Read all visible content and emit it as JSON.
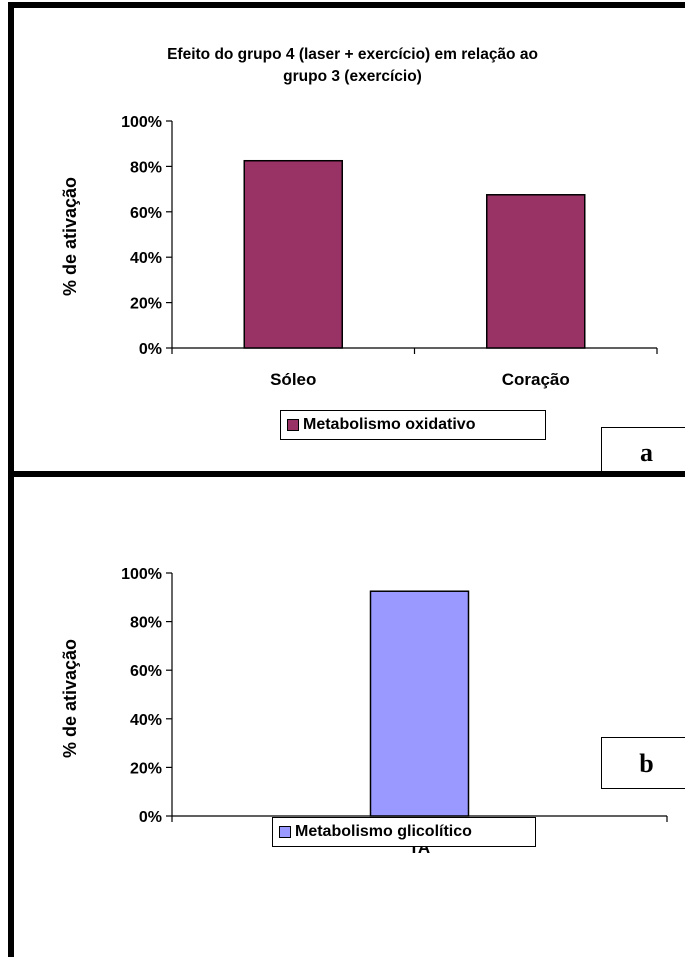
{
  "chart_data": [
    {
      "type": "bar",
      "title": "Efeito do grupo 4 (laser + exercício) em relação ao grupo 3 (exercício)",
      "title_lines": [
        "Efeito do grupo 4 (laser + exercício) em relação ao",
        "grupo 3 (exercício)"
      ],
      "ylabel": "% de ativação",
      "xlabel": "",
      "categories": [
        "Sóleo",
        "Coração"
      ],
      "series": [
        {
          "name": "Metabolismo oxidativo",
          "values": [
            82.5,
            67.5
          ],
          "color": "#993366"
        }
      ],
      "ylim": [
        0,
        100
      ],
      "yticks": [
        "0%",
        "20%",
        "40%",
        "60%",
        "80%",
        "100%"
      ],
      "grid": false,
      "legend_position": "bottom",
      "panel_label": "a"
    },
    {
      "type": "bar",
      "title": "",
      "ylabel": "% de ativação",
      "xlabel": "",
      "categories": [
        "TA"
      ],
      "series": [
        {
          "name": "Metabolismo glicolítico",
          "values": [
            92.5
          ],
          "color": "#9999ff"
        }
      ],
      "ylim": [
        0,
        100
      ],
      "yticks": [
        "0%",
        "20%",
        "40%",
        "60%",
        "80%",
        "100%"
      ],
      "grid": false,
      "legend_position": "bottom",
      "panel_label": "b"
    }
  ]
}
